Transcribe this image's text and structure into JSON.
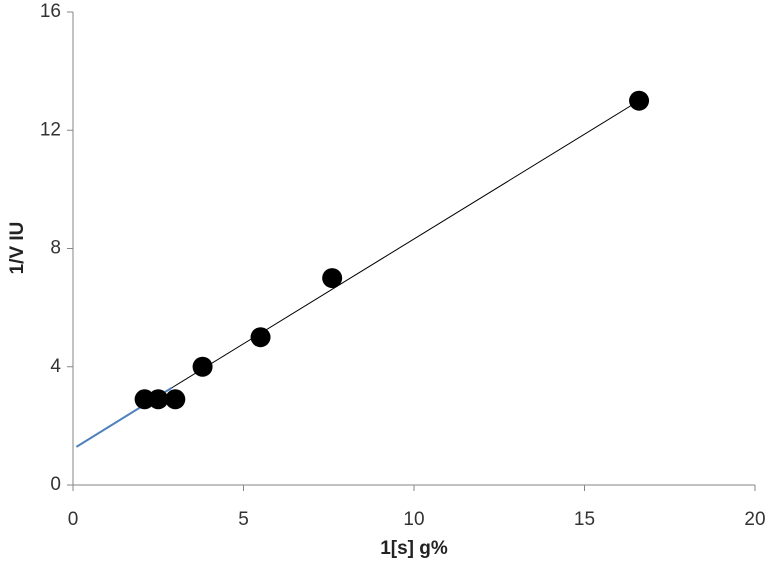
{
  "chart_data": {
    "type": "scatter",
    "xlabel": "1[s] g%",
    "ylabel": "1/V IU",
    "xlim": [
      0,
      20
    ],
    "xticks": [
      0,
      5,
      10,
      15,
      20
    ],
    "ylim": [
      0,
      16
    ],
    "yticks": [
      0,
      4,
      8,
      12,
      16
    ],
    "grid": false,
    "series": [
      {
        "mode": "markers",
        "color": "#000000",
        "x": [
          2.1,
          2.5,
          3.0,
          3.8,
          5.5,
          7.6,
          16.6
        ],
        "values": [
          2.9,
          2.9,
          2.9,
          4.0,
          5.0,
          7.0,
          13.0
        ]
      },
      {
        "mode": "line",
        "color": "#4f81bd",
        "x": [
          0.1,
          2.9
        ],
        "values": [
          1.29,
          3.29
        ]
      },
      {
        "mode": "line",
        "color": "#000000",
        "x": [
          2.9,
          16.6
        ],
        "values": [
          3.29,
          13.0
        ]
      }
    ]
  }
}
